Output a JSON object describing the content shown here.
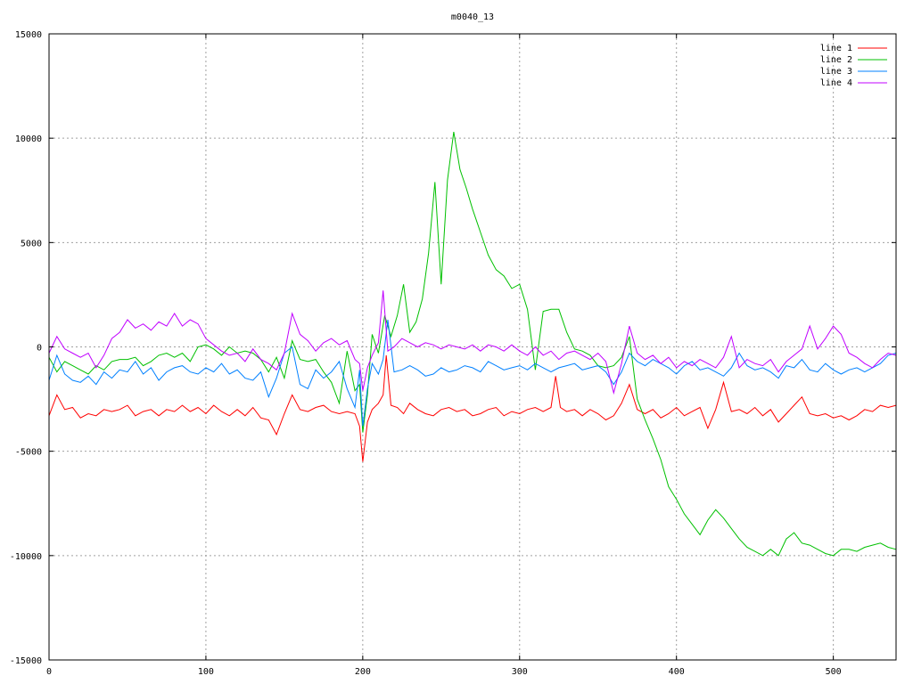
{
  "chart_data": {
    "type": "line",
    "title": "m0040_13",
    "xlabel": "",
    "ylabel": "",
    "xlim": [
      0,
      540
    ],
    "ylim": [
      -15000,
      15000
    ],
    "xticks": [
      0,
      100,
      200,
      300,
      400,
      500
    ],
    "yticks": [
      -15000,
      -10000,
      -5000,
      0,
      5000,
      10000,
      15000
    ],
    "grid": true,
    "legend_position": "top-right",
    "colors": {
      "line 1": "#ff0000",
      "line 2": "#00c000",
      "line 3": "#0080ff",
      "line 4": "#c000ff"
    },
    "series": [
      {
        "name": "line 1",
        "x": [
          0,
          5,
          10,
          15,
          20,
          25,
          30,
          35,
          40,
          45,
          50,
          55,
          60,
          65,
          70,
          75,
          80,
          85,
          90,
          95,
          100,
          105,
          110,
          115,
          120,
          125,
          130,
          135,
          140,
          145,
          150,
          155,
          160,
          165,
          170,
          175,
          180,
          185,
          190,
          195,
          198,
          200,
          203,
          206,
          210,
          213,
          215,
          218,
          222,
          226,
          230,
          235,
          240,
          245,
          250,
          255,
          260,
          265,
          270,
          275,
          280,
          285,
          290,
          295,
          300,
          305,
          310,
          315,
          320,
          323,
          326,
          330,
          335,
          340,
          345,
          350,
          355,
          360,
          365,
          370,
          375,
          380,
          385,
          390,
          395,
          400,
          405,
          410,
          415,
          420,
          425,
          430,
          435,
          440,
          445,
          450,
          455,
          460,
          465,
          470,
          475,
          480,
          485,
          490,
          495,
          500,
          505,
          510,
          515,
          520,
          525,
          530,
          535,
          540
        ],
        "values": [
          -3300,
          -2300,
          -3000,
          -2900,
          -3400,
          -3200,
          -3300,
          -3000,
          -3100,
          -3000,
          -2800,
          -3300,
          -3100,
          -3000,
          -3300,
          -3000,
          -3100,
          -2800,
          -3100,
          -2900,
          -3200,
          -2800,
          -3100,
          -3300,
          -3000,
          -3300,
          -2900,
          -3400,
          -3500,
          -4200,
          -3200,
          -2300,
          -3000,
          -3100,
          -2900,
          -2800,
          -3100,
          -3200,
          -3100,
          -3200,
          -3800,
          -5500,
          -3600,
          -3000,
          -2700,
          -2300,
          -400,
          -2800,
          -2900,
          -3200,
          -2700,
          -3000,
          -3200,
          -3300,
          -3000,
          -2900,
          -3100,
          -3000,
          -3300,
          -3200,
          -3000,
          -2900,
          -3300,
          -3100,
          -3200,
          -3000,
          -2900,
          -3100,
          -2900,
          -1400,
          -2900,
          -3100,
          -3000,
          -3300,
          -3000,
          -3200,
          -3500,
          -3300,
          -2700,
          -1800,
          -3000,
          -3200,
          -3000,
          -3400,
          -3200,
          -2900,
          -3300,
          -3100,
          -2900,
          -3900,
          -3000,
          -1700,
          -3100,
          -3000,
          -3200,
          -2900,
          -3300,
          -3000,
          -3600,
          -3200,
          -2800,
          -2400,
          -3200,
          -3300,
          -3200,
          -3400,
          -3300,
          -3500,
          -3300,
          -3000,
          -3100,
          -2800,
          -2900,
          -2800
        ]
      },
      {
        "name": "line 2",
        "x": [
          0,
          5,
          10,
          15,
          20,
          25,
          30,
          35,
          40,
          45,
          50,
          55,
          60,
          65,
          70,
          75,
          80,
          85,
          90,
          95,
          100,
          105,
          110,
          115,
          120,
          125,
          130,
          135,
          140,
          145,
          150,
          155,
          160,
          165,
          170,
          175,
          180,
          185,
          190,
          195,
          198,
          200,
          203,
          206,
          210,
          214,
          218,
          222,
          226,
          230,
          234,
          238,
          242,
          246,
          250,
          254,
          258,
          262,
          266,
          270,
          275,
          280,
          285,
          290,
          295,
          300,
          305,
          310,
          315,
          320,
          325,
          330,
          335,
          340,
          345,
          350,
          355,
          360,
          365,
          370,
          375,
          380,
          385,
          390,
          395,
          400,
          405,
          410,
          415,
          420,
          425,
          430,
          435,
          440,
          445,
          450,
          455,
          460,
          465,
          470,
          475,
          480,
          485,
          490,
          495,
          500,
          505,
          510,
          515,
          520,
          525,
          530,
          535,
          540
        ],
        "values": [
          -500,
          -1200,
          -700,
          -900,
          -1100,
          -1300,
          -900,
          -1100,
          -700,
          -600,
          -600,
          -500,
          -900,
          -700,
          -400,
          -300,
          -500,
          -300,
          -700,
          0,
          100,
          -100,
          -400,
          0,
          -300,
          -200,
          -300,
          -600,
          -1200,
          -500,
          -1500,
          300,
          -600,
          -700,
          -600,
          -1200,
          -1700,
          -2700,
          -200,
          -2100,
          -1800,
          -4100,
          -2300,
          600,
          -300,
          1500,
          500,
          1500,
          3000,
          700,
          1200,
          2300,
          4500,
          7900,
          3000,
          8000,
          10300,
          8500,
          7600,
          6600,
          5500,
          4400,
          3700,
          3400,
          2800,
          3000,
          1800,
          -1100,
          1700,
          1800,
          1800,
          700,
          -100,
          -200,
          -400,
          -900,
          -1000,
          -900,
          -500,
          500,
          -2500,
          -3500,
          -4400,
          -5400,
          -6700,
          -7300,
          -8000,
          -8500,
          -9000,
          -8300,
          -7800,
          -8200,
          -8700,
          -9200,
          -9600,
          -9800,
          -10000,
          -9700,
          -10000,
          -9200,
          -8900,
          -9400,
          -9500,
          -9700,
          -9900,
          -10000,
          -9700,
          -9700,
          -9800,
          -9600,
          -9500,
          -9400,
          -9600,
          -9700
        ]
      },
      {
        "name": "line 3",
        "x": [
          0,
          5,
          10,
          15,
          20,
          25,
          30,
          35,
          40,
          45,
          50,
          55,
          60,
          65,
          70,
          75,
          80,
          85,
          90,
          95,
          100,
          105,
          110,
          115,
          120,
          125,
          130,
          135,
          140,
          145,
          150,
          155,
          160,
          165,
          170,
          175,
          180,
          185,
          190,
          195,
          198,
          200,
          203,
          206,
          210,
          213,
          216,
          220,
          225,
          230,
          235,
          240,
          245,
          250,
          255,
          260,
          265,
          270,
          275,
          280,
          285,
          290,
          295,
          300,
          305,
          310,
          315,
          320,
          325,
          330,
          335,
          340,
          345,
          350,
          355,
          360,
          365,
          370,
          375,
          380,
          385,
          390,
          395,
          400,
          405,
          410,
          415,
          420,
          425,
          430,
          435,
          440,
          445,
          450,
          455,
          460,
          465,
          470,
          475,
          480,
          485,
          490,
          495,
          500,
          505,
          510,
          515,
          520,
          525,
          530,
          535,
          540
        ],
        "values": [
          -1600,
          -400,
          -1300,
          -1600,
          -1700,
          -1400,
          -1800,
          -1200,
          -1500,
          -1100,
          -1200,
          -700,
          -1300,
          -1000,
          -1600,
          -1200,
          -1000,
          -900,
          -1200,
          -1300,
          -1000,
          -1200,
          -800,
          -1300,
          -1100,
          -1500,
          -1600,
          -1200,
          -2400,
          -1500,
          -300,
          0,
          -1800,
          -2000,
          -1100,
          -1500,
          -1200,
          -700,
          -2000,
          -2900,
          -1100,
          -3800,
          -2000,
          -800,
          -1300,
          -600,
          1300,
          -1200,
          -1100,
          -900,
          -1100,
          -1400,
          -1300,
          -1000,
          -1200,
          -1100,
          -900,
          -1000,
          -1200,
          -700,
          -900,
          -1100,
          -1000,
          -900,
          -1100,
          -800,
          -1000,
          -1200,
          -1000,
          -900,
          -800,
          -1100,
          -1000,
          -900,
          -1200,
          -1800,
          -1200,
          -300,
          -700,
          -900,
          -600,
          -800,
          -1000,
          -1300,
          -900,
          -700,
          -1100,
          -1000,
          -1200,
          -1400,
          -1000,
          -300,
          -900,
          -1100,
          -1000,
          -1200,
          -1500,
          -900,
          -1000,
          -600,
          -1100,
          -1200,
          -800,
          -1100,
          -1300,
          -1100,
          -1000,
          -1200,
          -1000,
          -800,
          -400,
          -300
        ]
      },
      {
        "name": "line 4",
        "x": [
          0,
          5,
          10,
          15,
          20,
          25,
          30,
          35,
          40,
          45,
          50,
          55,
          60,
          65,
          70,
          75,
          80,
          85,
          90,
          95,
          100,
          105,
          110,
          115,
          120,
          125,
          130,
          135,
          140,
          145,
          150,
          155,
          160,
          165,
          170,
          175,
          180,
          185,
          190,
          195,
          198,
          200,
          203,
          206,
          210,
          213,
          216,
          220,
          225,
          230,
          235,
          240,
          245,
          250,
          255,
          260,
          265,
          270,
          275,
          280,
          285,
          290,
          295,
          300,
          305,
          310,
          315,
          320,
          325,
          330,
          335,
          340,
          345,
          350,
          355,
          360,
          365,
          370,
          375,
          380,
          385,
          390,
          395,
          400,
          405,
          410,
          415,
          420,
          425,
          430,
          435,
          440,
          445,
          450,
          455,
          460,
          465,
          470,
          475,
          480,
          485,
          490,
          495,
          500,
          505,
          510,
          515,
          520,
          525,
          530,
          535,
          540
        ],
        "values": [
          -300,
          500,
          -100,
          -300,
          -500,
          -300,
          -1000,
          -400,
          400,
          700,
          1300,
          900,
          1100,
          800,
          1200,
          1000,
          1600,
          1000,
          1300,
          1100,
          400,
          100,
          -200,
          -400,
          -300,
          -700,
          -100,
          -600,
          -800,
          -1100,
          -300,
          1600,
          600,
          300,
          -200,
          200,
          400,
          100,
          300,
          -600,
          -800,
          -2100,
          -1000,
          -400,
          200,
          2700,
          -200,
          0,
          400,
          200,
          0,
          200,
          100,
          -100,
          100,
          0,
          -100,
          100,
          -200,
          100,
          0,
          -200,
          100,
          -200,
          -400,
          0,
          -400,
          -200,
          -600,
          -300,
          -200,
          -400,
          -600,
          -300,
          -700,
          -2200,
          -800,
          1000,
          -300,
          -600,
          -400,
          -800,
          -500,
          -1000,
          -700,
          -900,
          -600,
          -800,
          -1000,
          -500,
          500,
          -1000,
          -600,
          -800,
          -900,
          -600,
          -1200,
          -700,
          -400,
          -100,
          1000,
          -100,
          400,
          1000,
          600,
          -300,
          -500,
          -800,
          -1000,
          -600,
          -300,
          -400
        ]
      }
    ]
  }
}
